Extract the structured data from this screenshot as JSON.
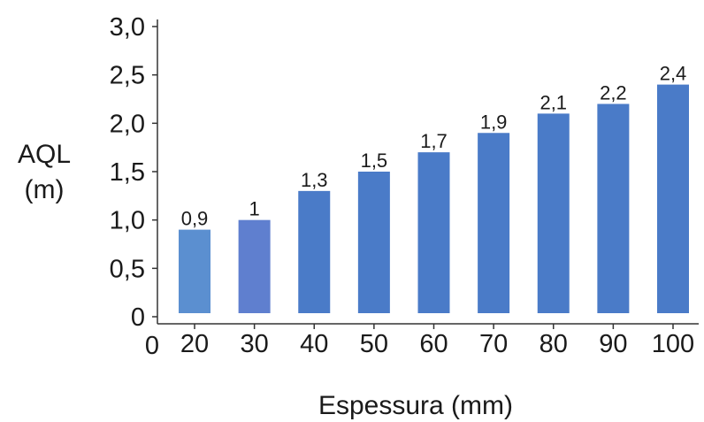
{
  "chart_data": {
    "type": "bar",
    "categories": [
      "20",
      "30",
      "40",
      "50",
      "60",
      "70",
      "80",
      "90",
      "100"
    ],
    "values": [
      0.9,
      1,
      1.3,
      1.5,
      1.7,
      1.9,
      2.1,
      2.2,
      2.4
    ],
    "data_labels": [
      "0,9",
      "1",
      "1,3",
      "1,5",
      "1,7",
      "1,9",
      "2,1",
      "2,2",
      "2,4"
    ],
    "title": "",
    "xlabel": "Espessura (mm)",
    "ylabel": [
      "AQL",
      "(m)"
    ],
    "x_origin_label": "0",
    "ylim": [
      0,
      3.0
    ],
    "yticks": [
      0,
      0.5,
      1.0,
      1.5,
      2.0,
      2.5,
      3.0
    ],
    "ytick_labels": [
      "0",
      "0,5",
      "1,0",
      "1,5",
      "2,0",
      "2,5",
      "3,0"
    ],
    "grid": false,
    "legend": "none",
    "colors": {
      "bars": [
        "#5b8fd0",
        "#5f7fcf",
        "#4a7bc8",
        "#4a7bc8",
        "#4a7bc8",
        "#4a7bc8",
        "#4a7bc8",
        "#4a7bc8",
        "#4a7bc8"
      ],
      "axis": "#333333"
    }
  }
}
